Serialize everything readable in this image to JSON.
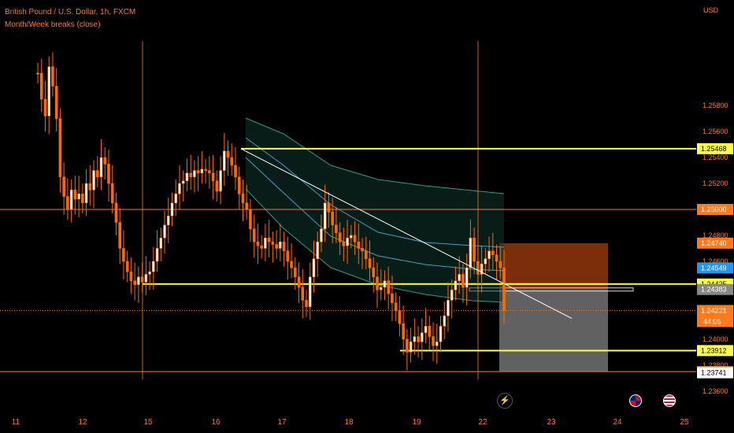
{
  "header": {
    "symbol_title": "British Pound / U.S. Dollar, 1h, FXCM",
    "indicator_name": "Month/Week breaks (close)"
  },
  "currency_label": "USD",
  "colors": {
    "background": "#000000",
    "candle": "#ff6a00",
    "level_yellow": "#ffff44",
    "level_orange": "#ff7a1a",
    "trend_white": "#ffffff",
    "band_outer": "#2a9a8a",
    "band_inner": "#3aa0c8",
    "short_stop_zone": "#7a2e0a",
    "short_target_zone": "#8a8a8a"
  },
  "chart_data": {
    "type": "candlestick",
    "y_range": [
      1.2355,
      1.2625
    ],
    "y_ticks": [
      "1.25800",
      "1.25600",
      "1.25400",
      "1.25200",
      "1.24800",
      "1.24600",
      "1.24000",
      "1.23800",
      "1.23600"
    ],
    "x_ticks": [
      "11",
      "12",
      "15",
      "16",
      "17",
      "18",
      "19",
      "22",
      "23",
      "24",
      "25"
    ],
    "price_labels": [
      {
        "value": "1.25468",
        "style": "yellow"
      },
      {
        "value": "1.25000",
        "style": "orange"
      },
      {
        "value": "1.24740",
        "style": "orange"
      },
      {
        "value": "1.24549",
        "style": "blue"
      },
      {
        "value": "1.24425",
        "style": "yellow"
      },
      {
        "value": "1.24383",
        "style": "gray"
      },
      {
        "value": "1.24221",
        "style": "orange",
        "extra": "44:05"
      },
      {
        "value": "1.23912",
        "style": "yellow"
      },
      {
        "value": "1.23750",
        "style": "orange"
      },
      {
        "value": "1.23741",
        "style": "white"
      }
    ],
    "horizontal_levels": [
      {
        "price": 1.25468,
        "color": "yellow",
        "from_day": "16"
      },
      {
        "price": 1.25,
        "color": "orange"
      },
      {
        "price": 1.24425,
        "color": "yellow",
        "from_day": "15"
      },
      {
        "price": 1.23912,
        "color": "yellow",
        "from_day": "19"
      },
      {
        "price": 1.2375,
        "color": "orange"
      }
    ],
    "week_breaks": [
      "15",
      "22"
    ],
    "trendline": {
      "from": [
        1.25468
      ],
      "to": [
        1.2416
      ]
    },
    "short_position": {
      "entry": 1.24383,
      "stop": 1.2474,
      "target": 1.2375
    },
    "close": [
      1.2605,
      1.2585,
      1.2572,
      1.261,
      1.2595,
      1.257,
      1.2525,
      1.251,
      1.25,
      1.2515,
      1.2508,
      1.2512,
      1.2505,
      1.252,
      1.2515,
      1.253,
      1.2525,
      1.254,
      1.2535,
      1.252,
      1.2505,
      1.249,
      1.247,
      1.246,
      1.2452,
      1.2445,
      1.2442,
      1.2448,
      1.2444,
      1.245,
      1.2452,
      1.246,
      1.247,
      1.2478,
      1.2488,
      1.2495,
      1.2505,
      1.2512,
      1.252,
      1.2522,
      1.2528,
      1.2525,
      1.253,
      1.2528,
      1.2531,
      1.253,
      1.2528,
      1.2522,
      1.2514,
      1.253,
      1.2545,
      1.254,
      1.2534,
      1.2525,
      1.2512,
      1.2505,
      1.25,
      1.2485,
      1.2475,
      1.2472,
      1.247,
      1.2478,
      1.2475,
      1.2473,
      1.247,
      1.2475,
      1.2468,
      1.246,
      1.2455,
      1.2448,
      1.244,
      1.243,
      1.2425,
      1.2448,
      1.2462,
      1.2475,
      1.2485,
      1.2505,
      1.2498,
      1.2488,
      1.2482,
      1.2475,
      1.2472,
      1.2478,
      1.248,
      1.2475,
      1.247,
      1.2468,
      1.2462,
      1.2455,
      1.2448,
      1.2438,
      1.244,
      1.2445,
      1.2435,
      1.2428,
      1.2422,
      1.2412,
      1.24,
      1.239,
      1.2398,
      1.2402,
      1.2398,
      1.2405,
      1.241,
      1.2402,
      1.2395,
      1.2398,
      1.241,
      1.2418,
      1.243,
      1.2438,
      1.2445,
      1.245,
      1.244,
      1.2455,
      1.2478,
      1.246,
      1.245,
      1.2458,
      1.2462,
      1.2468,
      1.2465,
      1.246,
      1.2455,
      1.2422
    ]
  },
  "flags": [
    {
      "name": "uk-flag-icon"
    },
    {
      "name": "us-flag-icon"
    }
  ]
}
